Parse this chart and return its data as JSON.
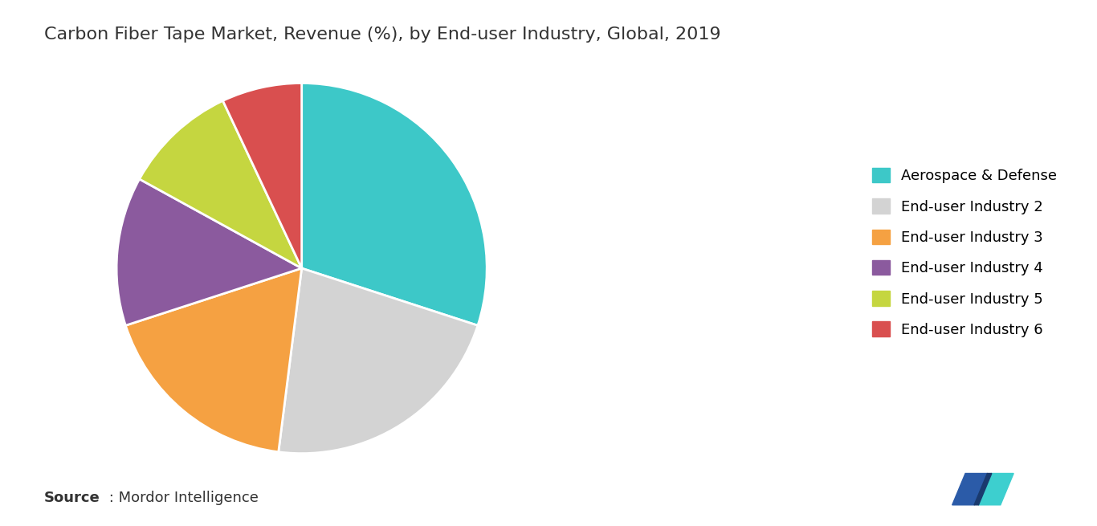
{
  "title": "Carbon Fiber Tape Market, Revenue (%), by End-user Industry, Global, 2019",
  "labels": [
    "Aerospace & Defense",
    "End-user Industry 2",
    "End-user Industry 3",
    "End-user Industry 4",
    "End-user Industry 5",
    "End-user Industry 6"
  ],
  "values": [
    30,
    22,
    18,
    13,
    10,
    7
  ],
  "colors": [
    "#3DC8C8",
    "#D3D3D3",
    "#F5A142",
    "#8B5A9E",
    "#C5D640",
    "#D94F4F"
  ],
  "source_label": "Source",
  "source_text": " : Mordor Intelligence",
  "background_color": "#FFFFFF",
  "title_fontsize": 16,
  "legend_fontsize": 13,
  "source_fontsize": 13
}
